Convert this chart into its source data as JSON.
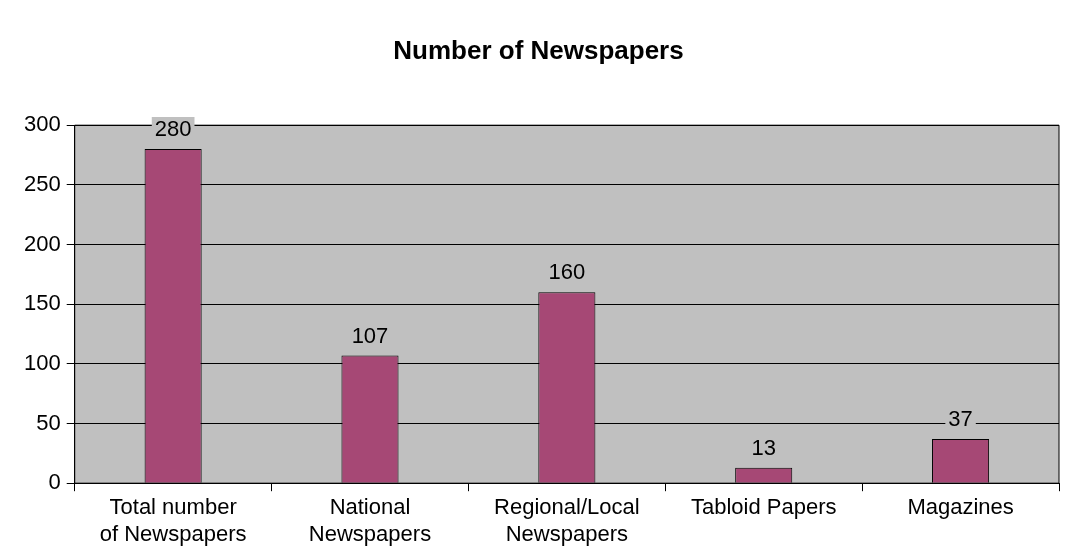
{
  "chart_data": {
    "type": "bar",
    "title": "Number of Newspapers",
    "categories": [
      "Total number\nof Newspapers",
      "National\nNewspapers",
      "Regional/Local\nNewspapers",
      "Tabloid Papers",
      "Magazines"
    ],
    "values": [
      280,
      107,
      160,
      13,
      37
    ],
    "color": "#a64875",
    "ylim": [
      0,
      300
    ],
    "yticks": [
      0,
      50,
      100,
      150,
      200,
      250,
      300
    ],
    "grid": "y",
    "legend": false,
    "data_labels": true
  }
}
